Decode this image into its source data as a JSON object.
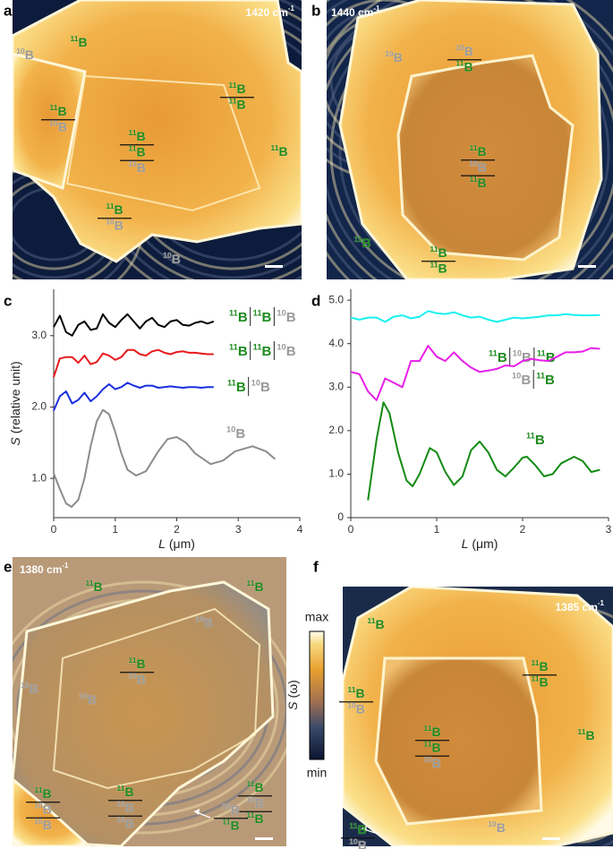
{
  "isotope_colors": {
    "11B": "#1e8a1e",
    "10B": "#9a9a9a"
  },
  "panels": [
    {
      "letter": "a",
      "wavenumber": "1420 cm",
      "wavenumber_exp": "-1",
      "labels": [
        [
          "10B"
        ],
        [
          "11B"
        ],
        [
          "11B",
          "10B"
        ],
        [
          "11B",
          "11B"
        ],
        [
          "11B",
          "11B",
          "10B"
        ],
        [
          "11B"
        ],
        [
          "11B",
          "10B"
        ],
        [
          "10B"
        ]
      ]
    },
    {
      "letter": "b",
      "wavenumber": "1440 cm",
      "wavenumber_exp": "-1",
      "labels": [
        [
          "10B",
          "11B"
        ],
        [
          "10B"
        ],
        [
          "11B",
          "10B",
          "11B"
        ],
        [
          "11B"
        ],
        [
          "11B",
          "11B"
        ]
      ]
    },
    {
      "letter": "e",
      "wavenumber": "1380 cm",
      "wavenumber_exp": "-1",
      "labels": [
        [
          "10B"
        ],
        [
          "10B"
        ],
        [
          "11B",
          "10B",
          "10B"
        ],
        [
          "11B",
          "10B",
          "10B"
        ],
        [
          "11B",
          "10B",
          "11B"
        ],
        [
          "10B",
          "11B"
        ],
        [
          "11B"
        ],
        [
          "11B"
        ],
        [
          "10B"
        ],
        [
          "11B",
          "10B"
        ]
      ]
    },
    {
      "letter": "f",
      "wavenumber": "1385 cm",
      "wavenumber_exp": "-1",
      "labels": [
        [
          "11B"
        ],
        [
          "11B",
          "11B"
        ],
        [
          "11B",
          "10B"
        ],
        [
          "11B",
          "11B",
          "10B"
        ],
        [
          "11B"
        ],
        [
          "10B"
        ],
        [
          "11B",
          "10B"
        ]
      ]
    }
  ],
  "colorbar": {
    "max": "max",
    "min": "min",
    "label_var": "S",
    "label": "(ω)"
  },
  "chart_data": [
    {
      "type": "line",
      "panel": "c",
      "ylabel_var": "S",
      "ylabel": "(relative unit)",
      "xlabel_var": "L",
      "xlabel": "(μm)",
      "xlim": [
        0,
        4
      ],
      "xticks": [
        0,
        1,
        2,
        3,
        4
      ],
      "ylim": [
        0.45,
        3.65
      ],
      "yticks": [
        {
          "value": 1,
          "label": "1.0"
        },
        {
          "value": 2,
          "label": "2.0"
        },
        {
          "value": 3,
          "label": "3.0"
        }
      ],
      "series": [
        {
          "color": "#000000",
          "label_parts": [
            "11B",
            "11B",
            "10B"
          ],
          "x": [
            0,
            0.1,
            0.2,
            0.3,
            0.4,
            0.5,
            0.6,
            0.7,
            0.8,
            0.9,
            1.0,
            1.1,
            1.2,
            1.3,
            1.4,
            1.5,
            1.6,
            1.7,
            1.8,
            1.9,
            2.0,
            2.1,
            2.2,
            2.3,
            2.4,
            2.5,
            2.6
          ],
          "values": [
            3.12,
            3.28,
            3.05,
            3.0,
            3.15,
            3.2,
            3.08,
            3.1,
            3.3,
            3.18,
            3.12,
            3.22,
            3.3,
            3.2,
            3.1,
            3.2,
            3.25,
            3.15,
            3.12,
            3.2,
            3.22,
            3.15,
            3.14,
            3.18,
            3.2,
            3.17,
            3.2
          ]
        },
        {
          "color": "#e8191c",
          "label_parts": [
            "11B",
            "11B",
            "10B"
          ],
          "x": [
            0,
            0.1,
            0.2,
            0.3,
            0.4,
            0.5,
            0.6,
            0.7,
            0.8,
            0.9,
            1.0,
            1.1,
            1.2,
            1.3,
            1.4,
            1.5,
            1.6,
            1.7,
            1.8,
            1.9,
            2.0,
            2.1,
            2.2,
            2.3,
            2.4,
            2.5,
            2.6
          ],
          "values": [
            2.42,
            2.68,
            2.7,
            2.7,
            2.62,
            2.72,
            2.6,
            2.63,
            2.75,
            2.72,
            2.66,
            2.7,
            2.8,
            2.8,
            2.74,
            2.72,
            2.78,
            2.8,
            2.76,
            2.74,
            2.77,
            2.78,
            2.76,
            2.76,
            2.75,
            2.74,
            2.74
          ]
        },
        {
          "color": "#1a2ee0",
          "label_parts": [
            "11B",
            "10B"
          ],
          "x": [
            0,
            0.1,
            0.2,
            0.3,
            0.4,
            0.5,
            0.6,
            0.7,
            0.8,
            0.9,
            1.0,
            1.1,
            1.2,
            1.3,
            1.4,
            1.5,
            1.6,
            1.7,
            1.8,
            1.9,
            2.0,
            2.1,
            2.2,
            2.3,
            2.4,
            2.5,
            2.6
          ],
          "values": [
            1.95,
            2.15,
            2.22,
            2.05,
            2.1,
            2.2,
            2.08,
            2.15,
            2.25,
            2.32,
            2.25,
            2.28,
            2.34,
            2.3,
            2.27,
            2.3,
            2.3,
            2.27,
            2.28,
            2.29,
            2.28,
            2.27,
            2.28,
            2.28,
            2.27,
            2.28,
            2.28
          ]
        },
        {
          "color": "#8c8c8c",
          "label_parts": [
            "10B"
          ],
          "x": [
            0,
            0.1,
            0.2,
            0.29,
            0.4,
            0.5,
            0.6,
            0.7,
            0.8,
            0.9,
            1.0,
            1.1,
            1.2,
            1.34,
            1.5,
            1.7,
            1.85,
            2.0,
            2.15,
            2.3,
            2.55,
            2.75,
            2.95,
            3.23,
            3.45,
            3.6
          ],
          "values": [
            1.07,
            0.85,
            0.65,
            0.6,
            0.7,
            1.0,
            1.45,
            1.8,
            1.96,
            1.9,
            1.65,
            1.35,
            1.12,
            1.04,
            1.1,
            1.38,
            1.55,
            1.58,
            1.5,
            1.35,
            1.2,
            1.25,
            1.38,
            1.45,
            1.38,
            1.27
          ]
        }
      ]
    },
    {
      "type": "line",
      "panel": "d",
      "xlabel_var": "L",
      "xlabel": "(μm)",
      "xlim": [
        0,
        3
      ],
      "xticks": [
        0,
        1,
        2,
        3
      ],
      "ylim": [
        0,
        5.25
      ],
      "yticks": [
        0,
        {
          "value": 1,
          "label": "1.0"
        },
        {
          "value": 2,
          "label": "2.0"
        },
        {
          "value": 3,
          "label": "3.0"
        },
        {
          "value": 4,
          "label": "4.0"
        },
        {
          "value": 5,
          "label": "5.0"
        }
      ],
      "series": [
        {
          "color": "#19f0f0",
          "label_parts": [
            "11B",
            "10B",
            "11B"
          ],
          "x": [
            0,
            0.1,
            0.2,
            0.3,
            0.4,
            0.5,
            0.6,
            0.7,
            0.8,
            0.9,
            1.0,
            1.1,
            1.2,
            1.3,
            1.4,
            1.5,
            1.6,
            1.7,
            1.8,
            1.9,
            2.0,
            2.1,
            2.2,
            2.3,
            2.4,
            2.5,
            2.6,
            2.7,
            2.8,
            2.9
          ],
          "values": [
            4.6,
            4.55,
            4.6,
            4.6,
            4.5,
            4.62,
            4.65,
            4.58,
            4.62,
            4.75,
            4.7,
            4.68,
            4.72,
            4.65,
            4.6,
            4.62,
            4.55,
            4.5,
            4.55,
            4.6,
            4.58,
            4.6,
            4.62,
            4.65,
            4.65,
            4.68,
            4.66,
            4.65,
            4.65,
            4.66
          ]
        },
        {
          "color": "#e81ee8",
          "label_parts": [
            "10B",
            "11B"
          ],
          "x": [
            0,
            0.1,
            0.2,
            0.3,
            0.4,
            0.5,
            0.6,
            0.7,
            0.8,
            0.9,
            1.0,
            1.1,
            1.2,
            1.3,
            1.4,
            1.5,
            1.6,
            1.7,
            1.8,
            1.9,
            2.0,
            2.1,
            2.2,
            2.3,
            2.4,
            2.5,
            2.6,
            2.7,
            2.8,
            2.9
          ],
          "values": [
            3.35,
            3.3,
            2.9,
            2.7,
            3.2,
            3.1,
            3.0,
            3.6,
            3.6,
            3.95,
            3.7,
            3.6,
            3.8,
            3.6,
            3.45,
            3.35,
            3.38,
            3.42,
            3.5,
            3.48,
            3.6,
            3.65,
            3.62,
            3.6,
            3.7,
            3.8,
            3.8,
            3.82,
            3.9,
            3.88
          ]
        },
        {
          "color": "#128a12",
          "label_parts": [
            "11B"
          ],
          "x": [
            0.2,
            0.3,
            0.38,
            0.45,
            0.55,
            0.65,
            0.72,
            0.8,
            0.92,
            1.0,
            1.1,
            1.2,
            1.3,
            1.4,
            1.5,
            1.6,
            1.7,
            1.8,
            1.9,
            2.0,
            2.05,
            2.15,
            2.25,
            2.35,
            2.45,
            2.6,
            2.7,
            2.8,
            2.9
          ],
          "values": [
            0.4,
            1.8,
            2.65,
            2.4,
            1.5,
            0.85,
            0.72,
            1.0,
            1.6,
            1.5,
            1.05,
            0.75,
            0.95,
            1.55,
            1.75,
            1.5,
            1.1,
            0.95,
            1.15,
            1.38,
            1.4,
            1.2,
            0.95,
            1.0,
            1.25,
            1.4,
            1.3,
            1.05,
            1.1
          ]
        }
      ]
    }
  ]
}
